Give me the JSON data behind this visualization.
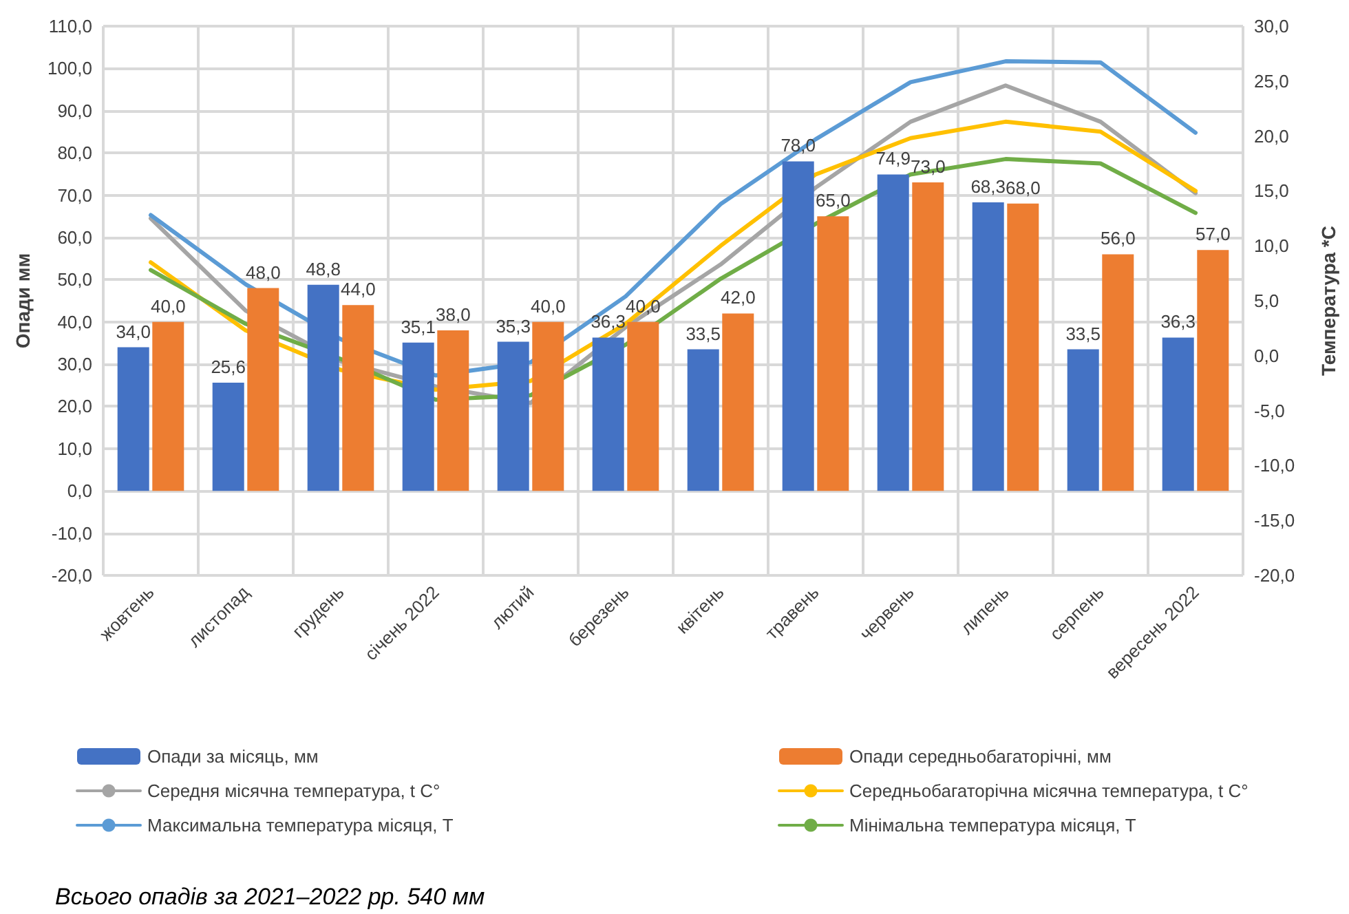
{
  "chart_data": {
    "type": "bar",
    "ylabel": "Опади мм",
    "y2label": "Температура *С",
    "categories": [
      "жовтень",
      "листопад",
      "грудень",
      "січень 2022",
      "лютий",
      "березень",
      "квітень",
      "травень",
      "червень",
      "липень",
      "серпень",
      "вересень 2022"
    ],
    "series": [
      {
        "name": "Опади за місяць, мм",
        "color": "#4472c4",
        "values": [
          34.0,
          25.6,
          48.8,
          35.1,
          35.3,
          36.3,
          33.5,
          78.0,
          74.9,
          68.3,
          33.5,
          36.3
        ],
        "value_labels": [
          "34,0",
          "25,6",
          "48,8",
          "35,1",
          "35,3",
          "36,3",
          "33,5",
          "78,0",
          "74,9",
          "68,3",
          "33,5",
          "36,3"
        ]
      },
      {
        "name": "Опади середньобагаторічні, мм",
        "color": "#ed7d31",
        "values": [
          40.0,
          48.0,
          44.0,
          38.0,
          40.0,
          40.0,
          42.0,
          65.0,
          73.0,
          68.0,
          56.0,
          57.0
        ],
        "value_labels": [
          "40,0",
          "48,0",
          "44,0",
          "38,0",
          "40,0",
          "40,0",
          "42,0",
          "65,0",
          "73,0",
          "68,0",
          "56,0",
          "57,0"
        ]
      },
      {
        "name": "Середня місячна температура, t C°",
        "type": "line",
        "axis": "y2",
        "color": "#a5a5a5",
        "values": [
          12.5,
          4.1,
          -0.5,
          -2.8,
          -4.3,
          2.6,
          8.3,
          15.3,
          21.3,
          24.6,
          21.3,
          14.8
        ]
      },
      {
        "name": "Середньобагаторічна місячна температура, t C°",
        "type": "line",
        "axis": "y2",
        "color": "#ffc000",
        "values": [
          8.5,
          2.3,
          -1.3,
          -3.1,
          -2.3,
          2.9,
          10.0,
          16.5,
          19.8,
          21.3,
          20.4,
          15.0
        ]
      },
      {
        "name": "Максимальна температура місяця, Т",
        "type": "line",
        "axis": "y2",
        "color": "#5b9bd5",
        "values": [
          12.8,
          6.5,
          1.5,
          -1.8,
          -0.6,
          5.4,
          13.8,
          19.7,
          24.9,
          26.8,
          26.7,
          20.3
        ]
      },
      {
        "name": "Мінімальна температура місяця, Т",
        "type": "line",
        "axis": "y2",
        "color": "#70ad47",
        "values": [
          7.8,
          2.9,
          -0.3,
          -4.0,
          -3.6,
          1.0,
          7.0,
          12.0,
          16.5,
          17.9,
          17.5,
          13.0
        ]
      }
    ],
    "ylim": [
      -20,
      110
    ],
    "yticks": [
      {
        "value": -20,
        "label": "-20,0"
      },
      {
        "value": -10,
        "label": "-10,0"
      },
      {
        "value": 0,
        "label": "0,0"
      },
      {
        "value": 10,
        "label": "10,0"
      },
      {
        "value": 20,
        "label": "20,0"
      },
      {
        "value": 30,
        "label": "30,0"
      },
      {
        "value": 40,
        "label": "40,0"
      },
      {
        "value": 50,
        "label": "50,0"
      },
      {
        "value": 60,
        "label": "60,0"
      },
      {
        "value": 70,
        "label": "70,0"
      },
      {
        "value": 80,
        "label": "80,0"
      },
      {
        "value": 90,
        "label": "90,0"
      },
      {
        "value": 100,
        "label": "100,0"
      },
      {
        "value": 110,
        "label": "110,0"
      }
    ],
    "y2lim": [
      -20,
      30
    ],
    "y2ticks": [
      {
        "value": -20,
        "label": "-20,0"
      },
      {
        "value": -15,
        "label": "-15,0"
      },
      {
        "value": -10,
        "label": "-10,0"
      },
      {
        "value": -5,
        "label": "-5,0"
      },
      {
        "value": 0,
        "label": "0,0"
      },
      {
        "value": 5,
        "label": "5,0"
      },
      {
        "value": 10,
        "label": "10,0"
      },
      {
        "value": 15,
        "label": "15,0"
      },
      {
        "value": 20,
        "label": "20,0"
      },
      {
        "value": 25,
        "label": "25,0"
      },
      {
        "value": 30,
        "label": "30,0"
      }
    ],
    "grid": true,
    "legend": "bottom",
    "annotations": [
      "Всього опадів за 2021–2022 рр. 540 мм"
    ]
  }
}
